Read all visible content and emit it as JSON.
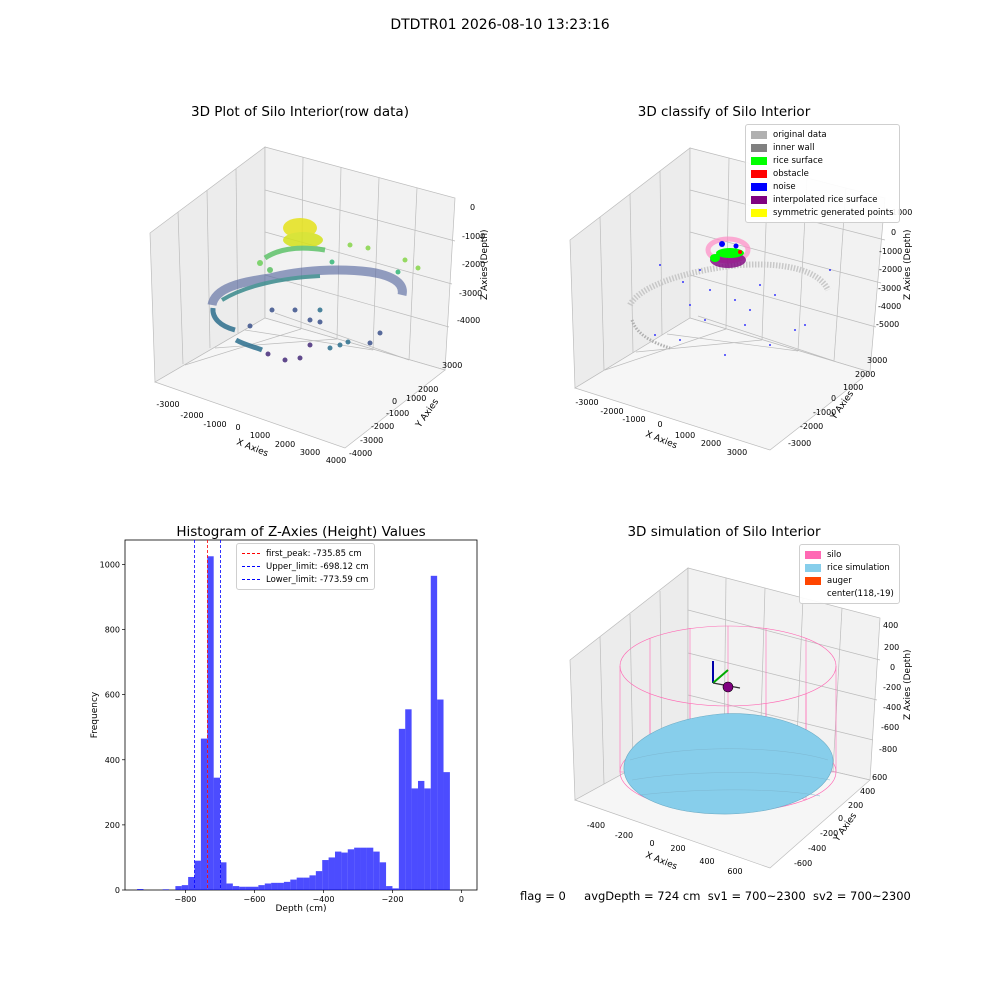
{
  "suptitle": "DTDTR01 2026-08-10 13:23:16",
  "panels": {
    "raw": {
      "title": "3D Plot of Silo Interior(row data)",
      "xlabel": "X Axies",
      "ylabel": "Y Axies",
      "zlabel": "Z Axies (Depth)",
      "xticks": [
        "-3000",
        "-2000",
        "-1000",
        "0",
        "1000",
        "2000",
        "3000",
        "4000"
      ],
      "yticks": [
        "3000",
        "2000",
        "1000",
        "0",
        "-1000",
        "-2000",
        "-3000",
        "-4000"
      ],
      "zticks": [
        "0",
        "-1000",
        "-2000",
        "-3000",
        "-4000"
      ]
    },
    "classify": {
      "title": "3D classify of Silo Interior",
      "xlabel": "X Axies",
      "ylabel": "Y Axies",
      "zlabel": "Z Axies (Depth)",
      "xticks": [
        "-3000",
        "-2000",
        "-1000",
        "0",
        "1000",
        "2000",
        "3000"
      ],
      "yticks": [
        "3000",
        "2000",
        "1000",
        "0",
        "-1000",
        "-2000",
        "-3000"
      ],
      "zticks": [
        "1000",
        "0",
        "-1000",
        "-2000",
        "-3000",
        "-4000",
        "-5000"
      ],
      "legend": [
        {
          "label": "original data",
          "color": "#b0b0b0"
        },
        {
          "label": "inner wall",
          "color": "#808080"
        },
        {
          "label": "rice surface",
          "color": "#00ff00"
        },
        {
          "label": "obstacle",
          "color": "#ff0000"
        },
        {
          "label": "noise",
          "color": "#0000ff"
        },
        {
          "label": "interpolated rice surface",
          "color": "#800080"
        },
        {
          "label": "symmetric generated points",
          "color": "#ffff00"
        }
      ]
    },
    "simulation": {
      "title": "3D simulation of Silo Interior",
      "xlabel": "X Axies",
      "ylabel": "Y Axies",
      "zlabel": "Z Axies (Depth)",
      "xticks": [
        "-400",
        "-200",
        "0",
        "200",
        "400",
        "600"
      ],
      "yticks": [
        "600",
        "400",
        "200",
        "0",
        "-200",
        "-400",
        "-600"
      ],
      "zticks": [
        "400",
        "200",
        "0",
        "-200",
        "-400",
        "-600",
        "-800"
      ],
      "legend": [
        {
          "label": "silo",
          "color": "#ff69b4"
        },
        {
          "label": "rice simulation",
          "color": "#87ceeb"
        },
        {
          "label": "auger",
          "color": "#ff4500"
        },
        {
          "label": "center(118,-19)",
          "color": ""
        }
      ]
    }
  },
  "chart_data": [
    {
      "type": "bar",
      "title": "Histogram of Z-Axies (Height) Values",
      "xlabel": "Depth (cm)",
      "ylabel": "Frequency",
      "xlim": [
        -975,
        45
      ],
      "ylim": [
        0,
        1075
      ],
      "xticks": [
        -800,
        -600,
        -400,
        -200,
        0
      ],
      "yticks": [
        0,
        200,
        400,
        600,
        800,
        1000
      ],
      "bar_color": "#0000ff",
      "bin_width": 18.5,
      "bin_starts": [
        -940,
        -921.5,
        -903,
        -884.5,
        -866,
        -847.5,
        -829,
        -810.5,
        -792,
        -773.5,
        -755,
        -736.5,
        -718,
        -699.5,
        -681,
        -662.5,
        -644,
        -625.5,
        -607,
        -588.5,
        -570,
        -551.5,
        -533,
        -514.5,
        -496,
        -477.5,
        -459,
        -440.5,
        -422,
        -403.5,
        -385,
        -366.5,
        -348,
        -329.5,
        -311,
        -292.5,
        -274,
        -255.5,
        -237,
        -218.5,
        -200,
        -181.5,
        -163,
        -144.5,
        -126,
        -107.5,
        -89,
        -70.5,
        -52,
        -33.5,
        -15
      ],
      "frequencies": [
        3,
        0,
        0,
        0,
        2,
        0,
        12,
        15,
        40,
        90,
        465,
        1025,
        345,
        85,
        20,
        12,
        10,
        10,
        10,
        15,
        20,
        22,
        22,
        25,
        32,
        38,
        38,
        45,
        58,
        92,
        100,
        118,
        115,
        125,
        130,
        130,
        130,
        118,
        85,
        12,
        5,
        495,
        555,
        312,
        335,
        312,
        965,
        585,
        362,
        0,
        0
      ],
      "vlines": [
        {
          "label": "first_peak: -735.85 cm",
          "value": -735.85,
          "color": "#ff0000"
        },
        {
          "label": "Upper_limit: -698.12 cm",
          "value": -698.12,
          "color": "#0000ff"
        },
        {
          "label": "Lower_limit: -773.59 cm",
          "value": -773.59,
          "color": "#0000ff"
        }
      ]
    }
  ],
  "footer": {
    "flag": "flag = 0",
    "avgdepth": "avgDepth = 724 cm",
    "sv1": "sv1 = 700~2300",
    "sv2": "sv2 = 700~2300"
  }
}
